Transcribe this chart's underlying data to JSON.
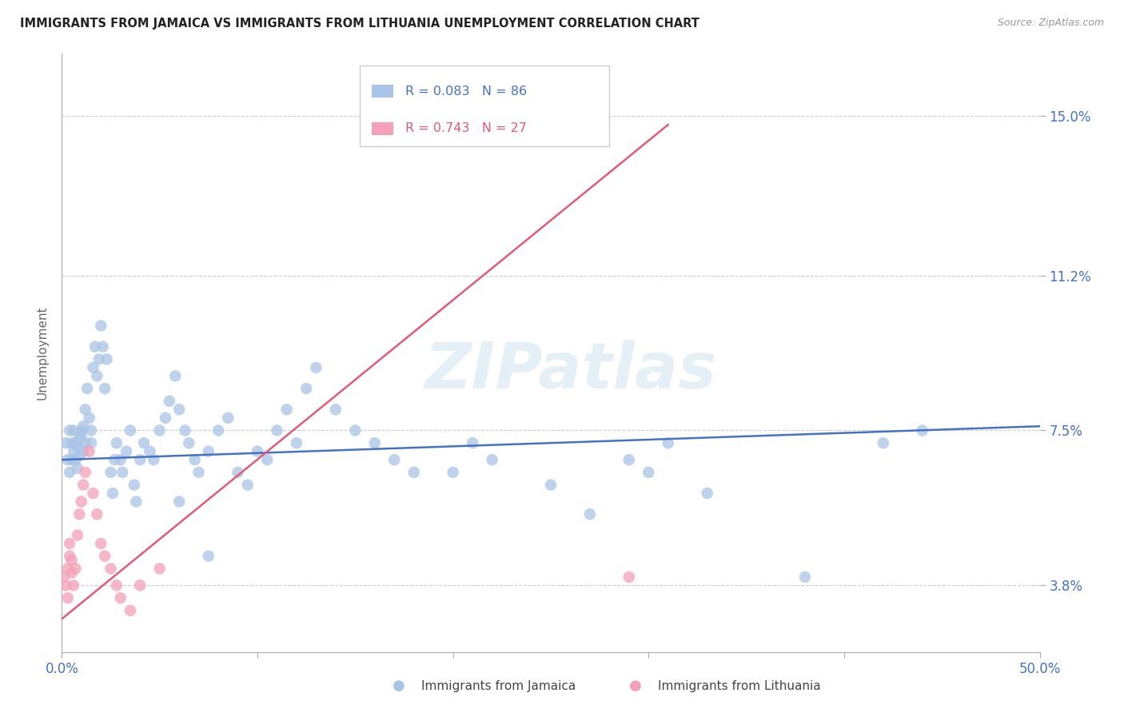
{
  "title": "IMMIGRANTS FROM JAMAICA VS IMMIGRANTS FROM LITHUANIA UNEMPLOYMENT CORRELATION CHART",
  "source": "Source: ZipAtlas.com",
  "ylabel": "Unemployment",
  "ytick_labels": [
    "3.8%",
    "7.5%",
    "11.2%",
    "15.0%"
  ],
  "ytick_values": [
    0.038,
    0.075,
    0.112,
    0.15
  ],
  "xmin": 0.0,
  "xmax": 0.5,
  "ymin": 0.022,
  "ymax": 0.165,
  "jamaica_color": "#a8c4e6",
  "lithuania_color": "#f4a0b8",
  "jamaica_line_color": "#4472c4",
  "lithuania_line_color": "#e05a7a",
  "watermark": "ZIPatlas",
  "legend_label1": "Immigrants from Jamaica",
  "legend_label2": "Immigrants from Lithuania",
  "jamaica_scatter_x": [
    0.002,
    0.003,
    0.004,
    0.004,
    0.005,
    0.005,
    0.006,
    0.006,
    0.007,
    0.007,
    0.008,
    0.008,
    0.009,
    0.009,
    0.01,
    0.01,
    0.011,
    0.011,
    0.012,
    0.012,
    0.013,
    0.014,
    0.015,
    0.015,
    0.016,
    0.017,
    0.018,
    0.019,
    0.02,
    0.021,
    0.022,
    0.023,
    0.025,
    0.026,
    0.027,
    0.028,
    0.03,
    0.031,
    0.033,
    0.035,
    0.037,
    0.038,
    0.04,
    0.042,
    0.045,
    0.047,
    0.05,
    0.053,
    0.055,
    0.058,
    0.06,
    0.063,
    0.065,
    0.068,
    0.07,
    0.075,
    0.08,
    0.085,
    0.09,
    0.095,
    0.1,
    0.105,
    0.11,
    0.115,
    0.12,
    0.125,
    0.13,
    0.14,
    0.15,
    0.16,
    0.17,
    0.18,
    0.2,
    0.21,
    0.22,
    0.25,
    0.27,
    0.3,
    0.33,
    0.38,
    0.42,
    0.44,
    0.29,
    0.31,
    0.06,
    0.075
  ],
  "jamaica_scatter_y": [
    0.072,
    0.068,
    0.075,
    0.065,
    0.072,
    0.068,
    0.07,
    0.075,
    0.068,
    0.072,
    0.066,
    0.071,
    0.073,
    0.069,
    0.075,
    0.074,
    0.07,
    0.076,
    0.072,
    0.08,
    0.085,
    0.078,
    0.072,
    0.075,
    0.09,
    0.095,
    0.088,
    0.092,
    0.1,
    0.095,
    0.085,
    0.092,
    0.065,
    0.06,
    0.068,
    0.072,
    0.068,
    0.065,
    0.07,
    0.075,
    0.062,
    0.058,
    0.068,
    0.072,
    0.07,
    0.068,
    0.075,
    0.078,
    0.082,
    0.088,
    0.08,
    0.075,
    0.072,
    0.068,
    0.065,
    0.07,
    0.075,
    0.078,
    0.065,
    0.062,
    0.07,
    0.068,
    0.075,
    0.08,
    0.072,
    0.085,
    0.09,
    0.08,
    0.075,
    0.072,
    0.068,
    0.065,
    0.065,
    0.072,
    0.068,
    0.062,
    0.055,
    0.065,
    0.06,
    0.04,
    0.072,
    0.075,
    0.068,
    0.072,
    0.058,
    0.045
  ],
  "lithuania_scatter_x": [
    0.001,
    0.002,
    0.003,
    0.003,
    0.004,
    0.004,
    0.005,
    0.005,
    0.006,
    0.007,
    0.008,
    0.009,
    0.01,
    0.011,
    0.012,
    0.014,
    0.016,
    0.018,
    0.02,
    0.022,
    0.025,
    0.028,
    0.03,
    0.035,
    0.04,
    0.05,
    0.29
  ],
  "lithuania_scatter_y": [
    0.04,
    0.038,
    0.042,
    0.035,
    0.045,
    0.048,
    0.044,
    0.041,
    0.038,
    0.042,
    0.05,
    0.055,
    0.058,
    0.062,
    0.065,
    0.07,
    0.06,
    0.055,
    0.048,
    0.045,
    0.042,
    0.038,
    0.035,
    0.032,
    0.038,
    0.042,
    0.04
  ],
  "jamaica_line_x": [
    0.0,
    0.5
  ],
  "jamaica_line_y": [
    0.068,
    0.076
  ],
  "lithuania_line_x": [
    0.0,
    0.31
  ],
  "lithuania_line_y": [
    0.03,
    0.148
  ]
}
